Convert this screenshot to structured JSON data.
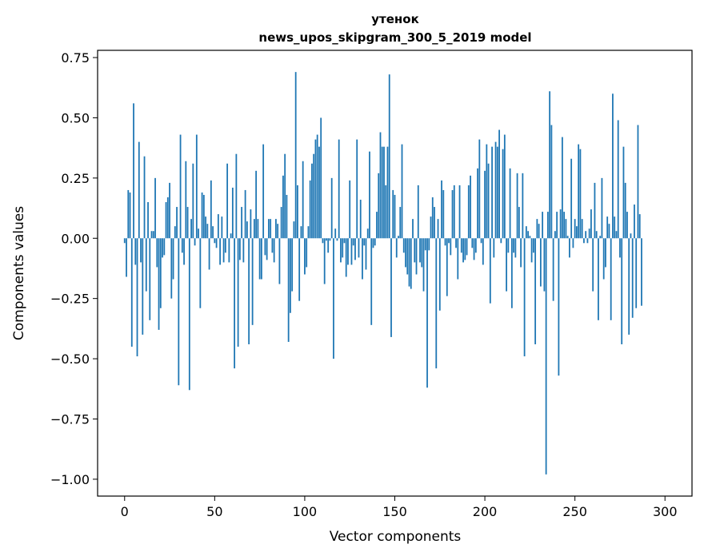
{
  "chart_data": {
    "type": "bar",
    "title": "утенок",
    "subtitle": "news_upos_skipgram_300_5_2019 model",
    "xlabel": "Vector components",
    "ylabel": "Components values",
    "xlim": [
      -15,
      315
    ],
    "ylim": [
      -1.07,
      0.78
    ],
    "xticks": [
      0,
      50,
      100,
      150,
      200,
      250,
      300
    ],
    "xtick_labels": [
      "0",
      "50",
      "100",
      "150",
      "200",
      "250",
      "300"
    ],
    "yticks": [
      -1.0,
      -0.75,
      -0.5,
      -0.25,
      0.0,
      0.25,
      0.5,
      0.75
    ],
    "ytick_labels": [
      "−1.00",
      "−0.75",
      "−0.50",
      "−0.25",
      "0.00",
      "0.25",
      "0.50",
      "0.75"
    ],
    "bar_color": "#1f77b4",
    "grid": false,
    "values": [
      -0.02,
      -0.16,
      0.2,
      0.19,
      -0.45,
      0.56,
      -0.11,
      -0.49,
      0.4,
      -0.1,
      -0.4,
      0.34,
      -0.22,
      0.15,
      -0.34,
      0.03,
      0.03,
      0.25,
      -0.12,
      -0.38,
      -0.29,
      -0.08,
      -0.07,
      0.15,
      0.17,
      0.23,
      -0.25,
      -0.17,
      0.05,
      0.13,
      -0.61,
      0.43,
      -0.06,
      -0.11,
      0.32,
      0.13,
      -0.63,
      0.08,
      0.31,
      -0.03,
      0.43,
      0.04,
      -0.29,
      0.19,
      0.18,
      0.09,
      0.06,
      -0.13,
      0.24,
      0.05,
      -0.02,
      -0.04,
      0.1,
      -0.11,
      0.09,
      -0.1,
      -0.06,
      0.31,
      -0.1,
      0.02,
      0.21,
      -0.54,
      0.35,
      -0.45,
      -0.09,
      0.13,
      -0.1,
      0.2,
      0.07,
      -0.44,
      0.12,
      -0.36,
      0.08,
      0.28,
      0.08,
      -0.17,
      -0.17,
      0.39,
      -0.07,
      -0.09,
      0.08,
      0.08,
      -0.06,
      -0.1,
      0.08,
      0.06,
      -0.19,
      0.13,
      0.26,
      0.35,
      0.18,
      -0.43,
      -0.31,
      -0.22,
      0.07,
      0.69,
      0.22,
      -0.26,
      0.05,
      0.32,
      -0.15,
      -0.12,
      0.05,
      0.24,
      0.31,
      0.35,
      0.41,
      0.43,
      0.38,
      0.5,
      -0.02,
      -0.19,
      -0.01,
      -0.06,
      -0.01,
      0.25,
      -0.5,
      0.04,
      -0.01,
      0.41,
      -0.1,
      -0.08,
      -0.02,
      -0.16,
      -0.11,
      0.24,
      -0.11,
      -0.03,
      -0.09,
      0.41,
      -0.08,
      0.16,
      -0.17,
      -0.03,
      -0.13,
      0.04,
      0.36,
      -0.36,
      -0.04,
      -0.03,
      0.11,
      0.27,
      0.44,
      0.38,
      0.38,
      0.22,
      0.38,
      0.68,
      -0.41,
      0.2,
      0.18,
      -0.08,
      0.01,
      0.13,
      0.39,
      -0.06,
      -0.12,
      -0.15,
      -0.2,
      -0.21,
      0.08,
      -0.1,
      -0.15,
      0.22,
      -0.1,
      -0.12,
      -0.22,
      -0.05,
      -0.62,
      -0.05,
      0.09,
      0.17,
      0.13,
      -0.54,
      0.08,
      -0.3,
      0.24,
      0.2,
      -0.03,
      -0.24,
      -0.02,
      -0.07,
      0.2,
      0.22,
      -0.04,
      -0.17,
      0.22,
      -0.06,
      -0.1,
      -0.09,
      -0.07,
      0.22,
      0.26,
      -0.04,
      -0.09,
      -0.06,
      0.29,
      0.41,
      -0.02,
      -0.11,
      0.28,
      0.39,
      0.31,
      -0.27,
      0.38,
      -0.08,
      0.4,
      0.38,
      0.45,
      -0.02,
      0.37,
      0.43,
      -0.22,
      -0.06,
      0.29,
      -0.29,
      -0.06,
      -0.08,
      0.27,
      0.13,
      -0.12,
      0.27,
      -0.49,
      0.05,
      0.03,
      0.01,
      -0.1,
      -0.06,
      -0.44,
      0.08,
      0.06,
      -0.2,
      0.11,
      -0.22,
      -0.98,
      0.11,
      0.61,
      0.47,
      -0.26,
      0.03,
      0.11,
      -0.57,
      0.12,
      0.42,
      0.11,
      0.08,
      0.01,
      -0.08,
      0.33,
      -0.04,
      0.08,
      0.05,
      0.39,
      0.37,
      0.08,
      -0.02,
      0.03,
      -0.02,
      0.04,
      0.12,
      -0.22,
      0.23,
      0.03,
      -0.34,
      0.01,
      0.25,
      -0.17,
      -0.12,
      0.09,
      0.06,
      -0.34,
      0.6,
      0.09,
      0.03,
      0.49,
      -0.08,
      -0.44,
      0.38,
      0.23,
      0.11,
      -0.4,
      0.02,
      -0.33,
      0.14,
      -0.29,
      0.47,
      0.1,
      -0.28
    ]
  }
}
